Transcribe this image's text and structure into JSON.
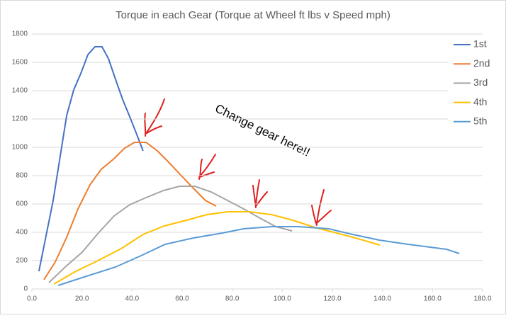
{
  "chart_data": {
    "type": "line",
    "title": "Torque in each Gear (Torque at Wheel ft lbs v Speed mph)",
    "annotation": "Change gear here!!",
    "xlim": [
      0,
      180
    ],
    "xticks": [
      {
        "value": 0,
        "label": "0.0"
      },
      {
        "value": 20,
        "label": "20.0"
      },
      {
        "value": 40,
        "label": "40.0"
      },
      {
        "value": 60,
        "label": "60.0"
      },
      {
        "value": 80,
        "label": "80.0"
      },
      {
        "value": 100,
        "label": "100.0"
      },
      {
        "value": 120,
        "label": "120.0"
      },
      {
        "value": 140,
        "label": "140.0"
      },
      {
        "value": 160,
        "label": "160.0"
      },
      {
        "value": 180,
        "label": "180.0"
      }
    ],
    "ylim": [
      0,
      1800
    ],
    "yticks": [
      0,
      200,
      400,
      600,
      800,
      1000,
      1200,
      1400,
      1600,
      1800
    ],
    "grid": true,
    "legend": "right",
    "series": [
      {
        "name": "1st",
        "color": "#4472c4",
        "x": [
          2.8,
          8.5,
          13.9,
          16.7,
          19.5,
          22.4,
          25.2,
          28.0,
          30.6,
          33.4,
          36.2,
          39.1,
          41.9,
          44.4
        ],
        "values": [
          125,
          625,
          1225,
          1405,
          1520,
          1655,
          1710,
          1710,
          1625,
          1480,
          1340,
          1215,
          1090,
          975
        ]
      },
      {
        "name": "2nd",
        "color": "#ed7d31",
        "x": [
          4.8,
          9.3,
          13.9,
          18.4,
          23.2,
          27.7,
          32.5,
          37.1,
          41.0,
          45.6,
          50.1,
          54.6,
          59.4,
          63.7,
          69.3,
          73.6
        ],
        "values": [
          65,
          190,
          365,
          565,
          735,
          845,
          915,
          995,
          1035,
          1035,
          975,
          895,
          805,
          725,
          625,
          585
        ]
      },
      {
        "name": "3rd",
        "color": "#a5a5a5",
        "x": [
          6.8,
          13.6,
          20.1,
          26.3,
          32.8,
          39.1,
          45.6,
          52.6,
          58.9,
          65.1,
          71.6,
          78.1,
          84.6,
          91.1,
          97.4,
          103.9
        ],
        "values": [
          45,
          160,
          260,
          390,
          515,
          595,
          645,
          695,
          725,
          725,
          685,
          625,
          565,
          500,
          440,
          410
        ]
      },
      {
        "name": "4th",
        "color": "#ffc000",
        "x": [
          8.8,
          17.6,
          25.8,
          35.7,
          44.4,
          52.9,
          61.7,
          69.9,
          78.4,
          86.9,
          95.7,
          104.2,
          112.9,
          121.7,
          130.2,
          139.0
        ],
        "values": [
          35,
          125,
          195,
          285,
          385,
          445,
          485,
          525,
          545,
          545,
          525,
          485,
          435,
          395,
          355,
          310
        ]
      },
      {
        "name": "5th",
        "color": "#5b9bd5",
        "x": [
          10.5,
          21.8,
          33.4,
          43.6,
          53.2,
          64.5,
          76.1,
          84.6,
          95.7,
          106.4,
          118.6,
          126.8,
          138.7,
          150.3,
          165.6,
          170.7
        ],
        "values": [
          25,
          90,
          155,
          235,
          315,
          360,
          395,
          425,
          440,
          440,
          425,
          390,
          345,
          315,
          280,
          250
        ]
      }
    ]
  }
}
